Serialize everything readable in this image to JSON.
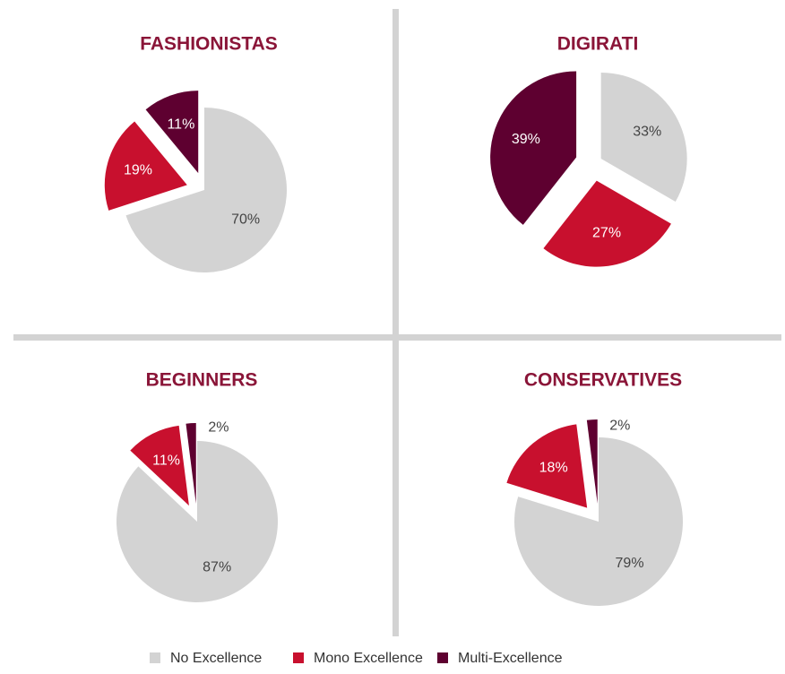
{
  "chart_data": [
    {
      "type": "pie",
      "title": "FASHIONISTAS",
      "values": [
        70,
        19,
        11
      ],
      "value_labels": [
        "70%",
        "19%",
        "11%"
      ]
    },
    {
      "type": "pie",
      "title": "DIGIRATI",
      "values": [
        33,
        27,
        39
      ],
      "value_labels": [
        "33%",
        "27%",
        "39%"
      ]
    },
    {
      "type": "pie",
      "title": "BEGINNERS",
      "values": [
        87,
        11,
        2
      ],
      "value_labels": [
        "87%",
        "11%",
        "2%"
      ]
    },
    {
      "type": "pie",
      "title": "CONSERVATIVES",
      "values": [
        79,
        18,
        2
      ],
      "value_labels": [
        "79%",
        "18%",
        "2%"
      ]
    }
  ],
  "legend": {
    "categories": [
      "No Excellence",
      "Mono Excellence",
      "Multi-Excellence"
    ],
    "colors": [
      "#d3d3d3",
      "#c8102e",
      "#5e0030"
    ]
  }
}
